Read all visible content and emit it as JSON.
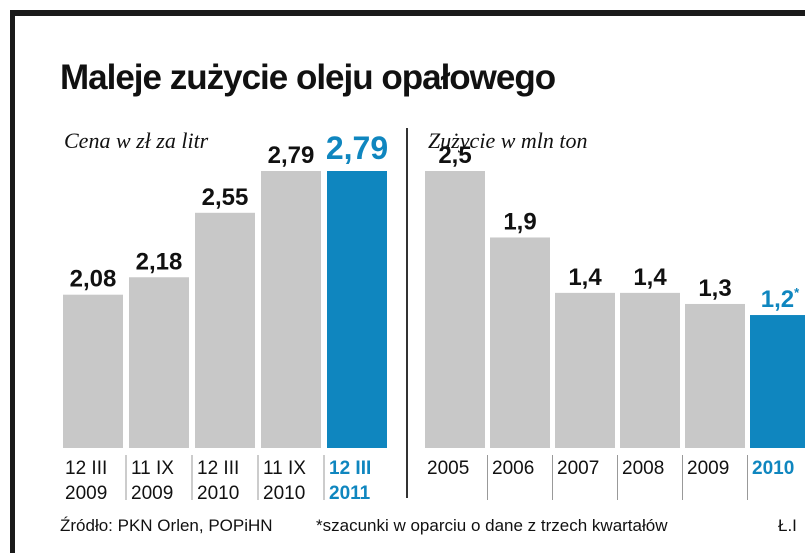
{
  "title": "Maleje zużycie oleju opałowego",
  "colors": {
    "bar": "#c8c8c8",
    "highlight": "#0f86bf",
    "text": "#111111"
  },
  "chart_data": [
    {
      "type": "bar",
      "title": "Cena w zł za litr",
      "categories": [
        [
          "12 III",
          "2009"
        ],
        [
          "11 IX",
          "2009"
        ],
        [
          "12 III",
          "2010"
        ],
        [
          "11 IX",
          "2010"
        ],
        [
          "12 III",
          "2011"
        ]
      ],
      "values": [
        2.08,
        2.18,
        2.55,
        2.79,
        2.79
      ],
      "labels": [
        "2,08",
        "2,18",
        "2,55",
        "2,79",
        "2,79"
      ],
      "highlight_index": 4,
      "ylim": [
        1.2,
        2.79
      ],
      "grid": false
    },
    {
      "type": "bar",
      "title": "Zużycie w mln ton",
      "categories": [
        [
          "2005"
        ],
        [
          "2006"
        ],
        [
          "2007"
        ],
        [
          "2008"
        ],
        [
          "2009"
        ],
        [
          "2010"
        ]
      ],
      "values": [
        2.5,
        1.9,
        1.4,
        1.4,
        1.3,
        1.2
      ],
      "labels": [
        "2,5",
        "1,9",
        "1,4",
        "1,4",
        "1,3",
        "1,2"
      ],
      "label_suffix": [
        "",
        "",
        "",
        "",
        "",
        "*"
      ],
      "highlight_index": 5,
      "ylim": [
        0.0,
        2.5
      ],
      "grid": false
    }
  ],
  "footer": {
    "source": "Źródło: PKN Orlen, POPiHN",
    "note": "*szacunki w oparciu o dane z trzech kwartałów",
    "credit": "Ł.I"
  }
}
